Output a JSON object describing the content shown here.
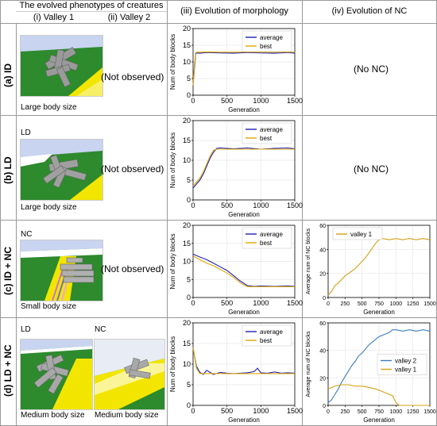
{
  "header": {
    "col1": "The evolved phenotypes of creatures",
    "col1a": "(i) Valley 1",
    "col1b": "(ii) Valley 2",
    "col3": "(iii) Evolution of morphology",
    "col4": "(iv) Evolution of NC"
  },
  "rows": [
    {
      "label": "(a) ID",
      "scene_label": "",
      "caption": "Large body size",
      "valley2": "(Not observed)",
      "nc": "(No NC)"
    },
    {
      "label": "(b) LD",
      "scene_label": "LD",
      "caption": "Large body size",
      "valley2": "(Not observed)",
      "nc": "(No NC)"
    },
    {
      "label": "(c) ID + NC",
      "scene_label": "NC",
      "caption": "Small body size",
      "valley2": "(Not observed)",
      "nc": ""
    },
    {
      "label": "(d) LD + NC",
      "scene_label": "LD",
      "caption": "Medium body size",
      "scene2_label": "NC",
      "caption2": "Medium body size",
      "nc": ""
    }
  ],
  "colors": {
    "average": "#1f1fb4",
    "best": "#e0a800",
    "valley1": "#d4a017",
    "valley2": "#3a7dbf",
    "grass": "#2d8a2d",
    "sky": "#c8d4f0",
    "yellow": "#f2e600"
  },
  "chart_data": [
    {
      "id": "a",
      "type": "line",
      "xlabel": "Generation",
      "ylabel": "Num of body blocks",
      "xlim": [
        0,
        1500
      ],
      "ylim": [
        0,
        20
      ],
      "xticks": [
        0,
        500,
        1000,
        1500
      ],
      "yticks": [
        0,
        5,
        10,
        15,
        20
      ],
      "legend": "top-right",
      "series": [
        {
          "name": "average",
          "x": [
            0,
            20,
            40,
            60,
            100,
            200,
            400,
            600,
            800,
            1000,
            1200,
            1400,
            1500
          ],
          "y": [
            3,
            8,
            12.5,
            12.7,
            12.6,
            12.8,
            12.7,
            12.6,
            12.8,
            12.7,
            12.6,
            12.8,
            12.6
          ]
        },
        {
          "name": "best",
          "x": [
            0,
            20,
            40,
            60,
            100,
            200,
            400,
            600,
            800,
            1000,
            1200,
            1400,
            1500
          ],
          "y": [
            3,
            9,
            12.8,
            12.9,
            12.9,
            13,
            12.9,
            12.9,
            13,
            12.9,
            12.9,
            13,
            12.9
          ]
        }
      ]
    },
    {
      "id": "b",
      "type": "line",
      "xlabel": "Generation",
      "ylabel": "Num of body blocks",
      "xlim": [
        0,
        1500
      ],
      "ylim": [
        0,
        20
      ],
      "xticks": [
        0,
        500,
        1000,
        1500
      ],
      "yticks": [
        0,
        5,
        10,
        15,
        20
      ],
      "legend": "top-right",
      "series": [
        {
          "name": "average",
          "x": [
            0,
            50,
            100,
            150,
            200,
            250,
            300,
            350,
            400,
            600,
            800,
            1000,
            1200,
            1400,
            1500
          ],
          "y": [
            3,
            4,
            5,
            6.5,
            8.5,
            10.5,
            12,
            13,
            13.1,
            12.9,
            13.1,
            12.8,
            13,
            13.1,
            12.9
          ]
        },
        {
          "name": "best",
          "x": [
            0,
            50,
            100,
            150,
            200,
            250,
            300,
            350,
            400,
            600,
            800,
            1000,
            1200,
            1400,
            1500
          ],
          "y": [
            3.5,
            4.5,
            5.5,
            7,
            9,
            11,
            12.5,
            12.8,
            12.8,
            12.8,
            12.8,
            12.8,
            12.8,
            12.8,
            12.8
          ]
        }
      ]
    },
    {
      "id": "c",
      "type": "line",
      "xlabel": "Generation",
      "ylabel": "Num of body blocks",
      "xlim": [
        0,
        1500
      ],
      "ylim": [
        0,
        20
      ],
      "xticks": [
        0,
        500,
        1000,
        1500
      ],
      "yticks": [
        0,
        5,
        10,
        15,
        20
      ],
      "legend": "top-right",
      "series": [
        {
          "name": "average",
          "x": [
            0,
            100,
            200,
            300,
            400,
            500,
            600,
            700,
            800,
            900,
            1000,
            1200,
            1400,
            1500
          ],
          "y": [
            12,
            11.2,
            10.5,
            9.5,
            8.5,
            7.5,
            6,
            4.5,
            3.3,
            3.1,
            3.2,
            3.1,
            3.2,
            3.1
          ]
        },
        {
          "name": "best",
          "x": [
            0,
            100,
            200,
            300,
            400,
            500,
            600,
            700,
            800,
            900,
            1000,
            1200,
            1400,
            1500
          ],
          "y": [
            11.5,
            10.5,
            9.5,
            8.8,
            7.8,
            6.8,
            5.5,
            4,
            3,
            3,
            3,
            3,
            3,
            3
          ]
        }
      ]
    },
    {
      "id": "d",
      "type": "line",
      "xlabel": "Generation",
      "ylabel": "Num of body blocks",
      "xlim": [
        0,
        1500
      ],
      "ylim": [
        0,
        20
      ],
      "xticks": [
        0,
        500,
        1000,
        1500
      ],
      "yticks": [
        0,
        5,
        10,
        15,
        20
      ],
      "legend": "top-right",
      "series": [
        {
          "name": "average",
          "x": [
            0,
            20,
            50,
            100,
            150,
            200,
            300,
            400,
            500,
            600,
            700,
            800,
            900,
            950,
            1000,
            1100,
            1200,
            1300,
            1400,
            1500
          ],
          "y": [
            14,
            12,
            9.5,
            8,
            7.5,
            8.5,
            7.5,
            8,
            7.8,
            7.7,
            7.8,
            7.9,
            8.2,
            9,
            7.9,
            7.8,
            8.1,
            7.8,
            7.9,
            7.8
          ]
        },
        {
          "name": "best",
          "x": [
            0,
            20,
            50,
            100,
            200,
            400,
            600,
            800,
            1000,
            1200,
            1400,
            1500
          ],
          "y": [
            14,
            12,
            9,
            7.7,
            7.7,
            7.7,
            7.7,
            7.7,
            7.7,
            7.7,
            7.7,
            7.7
          ]
        }
      ]
    },
    {
      "id": "c-nc",
      "type": "line",
      "xlabel": "Generation",
      "ylabel": "Average num of NC blocks",
      "xlim": [
        0,
        1500
      ],
      "ylim": [
        0,
        60
      ],
      "xticks": [
        0,
        250,
        500,
        750,
        1000,
        1250,
        1500
      ],
      "yticks": [
        0,
        20,
        40,
        60
      ],
      "legend": "top-left",
      "series": [
        {
          "name": "valley 1",
          "x": [
            0,
            50,
            100,
            150,
            200,
            250,
            300,
            350,
            400,
            450,
            500,
            550,
            600,
            650,
            700,
            750,
            800,
            900,
            1000,
            1100,
            1200,
            1300,
            1400,
            1500
          ],
          "y": [
            2,
            5,
            10,
            12,
            15,
            18,
            20,
            22,
            24,
            27,
            30,
            33,
            37,
            41,
            45,
            48,
            49,
            48,
            49,
            48,
            49,
            48,
            49,
            48
          ]
        }
      ]
    },
    {
      "id": "d-nc",
      "type": "line",
      "xlabel": "Generation",
      "ylabel": "Average num of NC blocks",
      "xlim": [
        0,
        1500
      ],
      "ylim": [
        0,
        60
      ],
      "xticks": [
        0,
        250,
        500,
        750,
        1000,
        1250,
        1500
      ],
      "yticks": [
        0,
        20,
        40,
        60
      ],
      "legend": "right",
      "series": [
        {
          "name": "valley 2",
          "x": [
            0,
            50,
            100,
            150,
            200,
            250,
            300,
            350,
            400,
            450,
            500,
            550,
            600,
            650,
            700,
            750,
            800,
            850,
            900,
            950,
            1000,
            1100,
            1200,
            1300,
            1400,
            1500
          ],
          "y": [
            2,
            4,
            8,
            12,
            17,
            21,
            25,
            29,
            32,
            36,
            38,
            41,
            44,
            46,
            48,
            50,
            51,
            52,
            53,
            55,
            55,
            54,
            55,
            54,
            55,
            54
          ]
        },
        {
          "name": "valley 1",
          "x": [
            0,
            100,
            200,
            300,
            400,
            500,
            600,
            700,
            800,
            900,
            950,
            1000,
            1050,
            1100,
            1200,
            1300,
            1400,
            1500
          ],
          "y": [
            12,
            14,
            15,
            15,
            14,
            14,
            13,
            12,
            10,
            8,
            7,
            2,
            0,
            0,
            0,
            0,
            0,
            0
          ]
        }
      ]
    }
  ]
}
